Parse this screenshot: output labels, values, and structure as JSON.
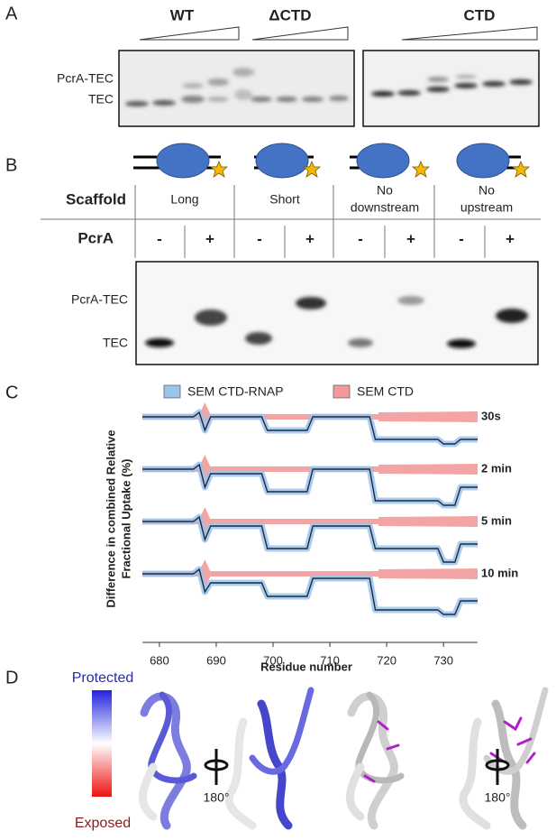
{
  "panel_labels": [
    "A",
    "B",
    "C",
    "D"
  ],
  "panel_a": {
    "groups": [
      "WT",
      "ΔCTD",
      "CTD"
    ],
    "bands": [
      "PcrA-TEC",
      "TEC"
    ]
  },
  "panel_b": {
    "row_headers": [
      "Scaffold",
      "PcrA"
    ],
    "scaffolds": [
      [
        "Long"
      ],
      [
        "Short"
      ],
      [
        "No",
        "downstream"
      ],
      [
        "No",
        "upstream"
      ]
    ],
    "pcra": [
      "-",
      "+",
      "-",
      "+",
      "-",
      "+",
      "-",
      "+"
    ],
    "bands": [
      "PcrA-TEC",
      "TEC"
    ]
  },
  "chart_data": {
    "type": "line",
    "xlabel": "Residue number",
    "ylabel": [
      "Difference in combined Relative",
      "Fractional Uptake (%)"
    ],
    "legend": [
      {
        "name": "SEM CTD-RNAP",
        "color": "#9cc3ea"
      },
      {
        "name": "SEM CTD",
        "color": "#f29a9a"
      }
    ],
    "x": [
      677,
      686,
      687,
      688,
      689,
      690,
      698,
      699,
      706,
      707,
      717,
      718,
      729,
      730,
      732,
      733,
      736
    ],
    "series": [
      {
        "name": "30s",
        "color": "#1b2a44",
        "values": [
          0,
          0,
          1,
          -3,
          0,
          0,
          0,
          -3,
          -3,
          0,
          0,
          -5,
          -5,
          -6,
          -6,
          -5,
          -5
        ]
      },
      {
        "name": "2 min",
        "color": "#1b2a44",
        "values": [
          0,
          0,
          1,
          -4,
          -1,
          -1,
          -1,
          -5,
          -5,
          0,
          0,
          -7,
          -7,
          -8,
          -8,
          -4,
          -4
        ]
      },
      {
        "name": "5 min",
        "color": "#1b2a44",
        "values": [
          0,
          0,
          1,
          -4,
          -1,
          -1,
          -1,
          -6,
          -6,
          -1,
          -1,
          -6,
          -6,
          -9,
          -9,
          -5,
          -5
        ]
      },
      {
        "name": "10 min",
        "color": "#1b2a44",
        "values": [
          0,
          0,
          1,
          -4,
          -2,
          -2,
          -2,
          -5,
          -5,
          -1,
          -1,
          -8,
          -8,
          -9,
          -9,
          -6,
          -6
        ]
      }
    ],
    "xlim": [
      677,
      736
    ],
    "xticks": [
      680,
      690,
      700,
      710,
      720,
      730
    ],
    "ylim": [
      -9,
      2
    ]
  },
  "panel_d": {
    "scale_top": "Protected",
    "scale_bottom": "Exposed",
    "rotation": [
      "180°",
      "180°"
    ]
  }
}
